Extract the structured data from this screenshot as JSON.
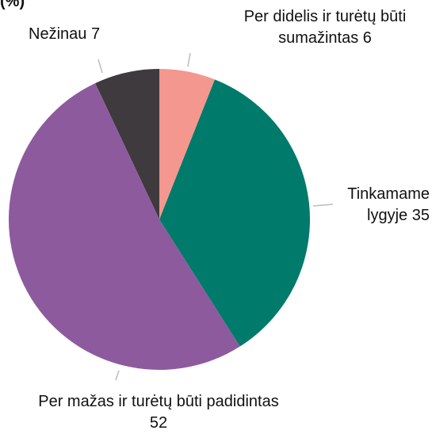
{
  "chart_data": {
    "type": "pie",
    "title": "(%)",
    "categories": [
      "Per didelis ir turėtų būti sumažintas",
      "Tinkamame lygyje",
      "Per mažas ir turėtų būti padidintas",
      "Nežinau"
    ],
    "values": [
      6,
      35,
      52,
      7
    ],
    "colors": [
      "#f4978e",
      "#007a6b",
      "#8e5a9e",
      "#3e3a3e"
    ]
  }
}
